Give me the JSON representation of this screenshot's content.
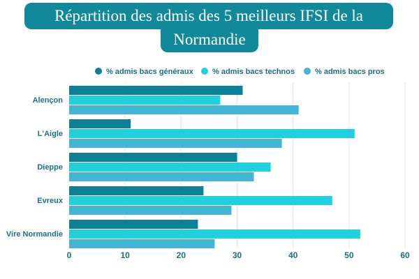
{
  "chart_data": {
    "type": "bar",
    "orientation": "horizontal",
    "title_line1": "Répartition des admis des 5 meilleurs IFSI de la",
    "title_line2": "Normandie",
    "categories": [
      "Alençon",
      "L'Aigle",
      "Dieppe",
      "Evreux",
      "Vire Normandie"
    ],
    "series": [
      {
        "name": "% admis bacs généraux",
        "color": "#0a8199",
        "values": [
          31,
          11,
          30,
          24,
          23
        ]
      },
      {
        "name": "% admis bacs technos",
        "color": "#1fd1e0",
        "values": [
          27,
          51,
          36,
          47,
          52
        ]
      },
      {
        "name": "% admis bacs pros",
        "color": "#44b5d4",
        "values": [
          41,
          38,
          33,
          29,
          26
        ]
      }
    ],
    "xlim": [
      0,
      60
    ],
    "xticks": [
      "0",
      "10",
      "20",
      "30",
      "40",
      "50",
      "60"
    ],
    "grid": true,
    "legend_position": "top"
  }
}
